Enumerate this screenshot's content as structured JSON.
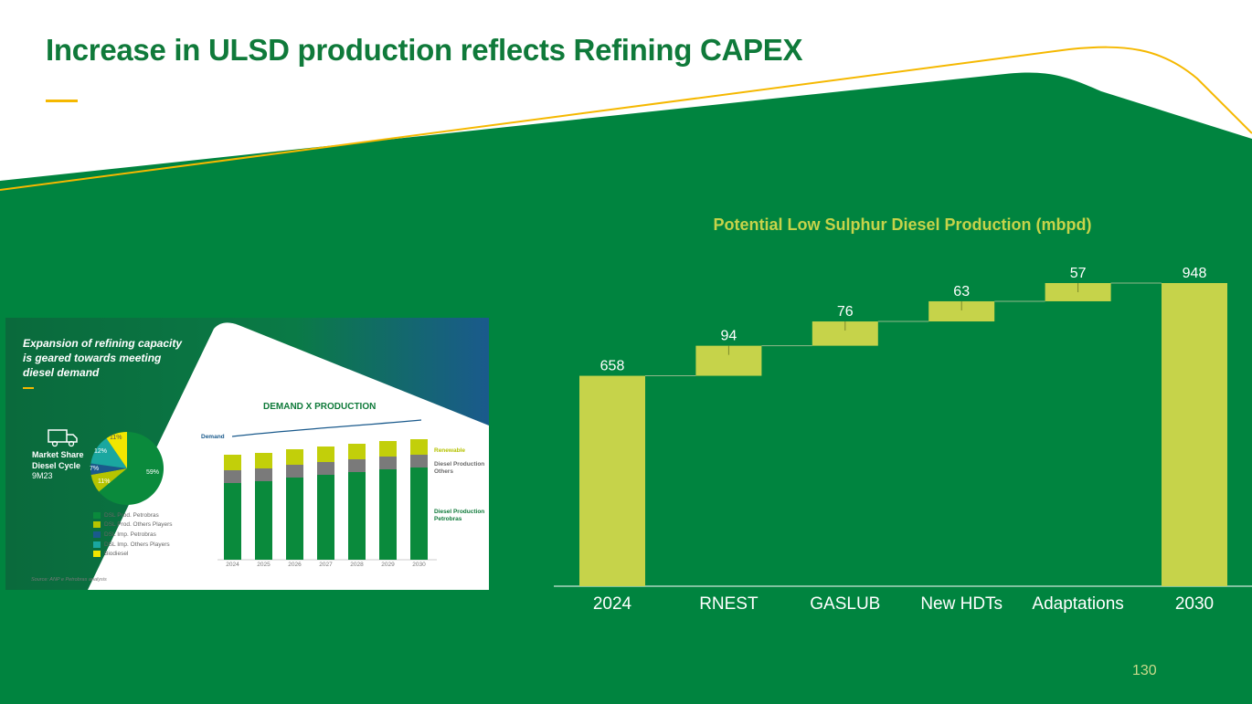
{
  "header": {
    "title": "Increase in ULSD production reflects Refining CAPEX"
  },
  "page_number": "130",
  "colors": {
    "green": "#00843f",
    "title_green": "#0f7a3a",
    "lime": "#c6d34a",
    "accent_yellow": "#f5b800"
  },
  "inset": {
    "headline": "Expansion of refining capacity is geared towards meeting diesel demand",
    "truck_icon": "truck-icon",
    "market_share_label": "Market Share Diesel Cycle",
    "market_share_period": "9M23",
    "pie_labels": [
      "59%",
      "11%",
      "7%",
      "12%",
      "11%"
    ],
    "legend": [
      {
        "label": "DSL Prod. Petrobras",
        "color": "#0a8a3c"
      },
      {
        "label": "DSL Prod. Others Players",
        "color": "#b6c400"
      },
      {
        "label": "DSL Imp. Petrobras",
        "color": "#1a5a8c"
      },
      {
        "label": "DSL Imp. Others Players",
        "color": "#1aa7a0"
      },
      {
        "label": "Biodiesel",
        "color": "#f2e600"
      }
    ],
    "source": "Source: ANP e Petrobras analysis",
    "mini_chart": {
      "title": "DEMAND X PRODUCTION",
      "demand_label": "Demand",
      "renewable_label": "Renewable",
      "others_label": "Diesel Production Others",
      "petrobras_label": "Diesel Production Petrobras",
      "years": [
        "2024",
        "2025",
        "2026",
        "2027",
        "2028",
        "2029",
        "2030"
      ]
    }
  },
  "chart_data": {
    "type": "waterfall",
    "title": "Potential Low Sulphur Diesel Production (mbpd)",
    "categories": [
      "2024",
      "RNEST",
      "GASLUB",
      "New HDTs",
      "Adaptations",
      "2030"
    ],
    "values": [
      658,
      94,
      76,
      63,
      57,
      948
    ],
    "kinds": [
      "total",
      "increment",
      "increment",
      "increment",
      "increment",
      "total"
    ],
    "labels": [
      "658",
      "94",
      "76",
      "63",
      "57",
      "948"
    ],
    "ylim": [
      0,
      948
    ]
  }
}
